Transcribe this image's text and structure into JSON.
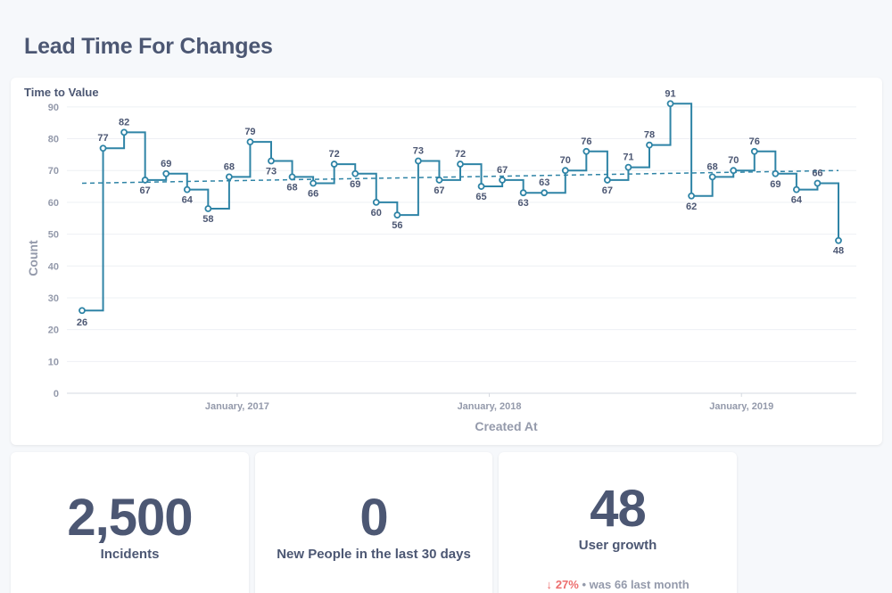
{
  "page": {
    "title": "Lead Time For Changes"
  },
  "chart_card": {
    "title": "Time to Value"
  },
  "chart_data": {
    "type": "line",
    "line_style": "step",
    "trend_line": true,
    "title": "Time to Value",
    "xlabel": "Created At",
    "ylabel": "Count",
    "ylim": [
      0,
      95
    ],
    "yticks": [
      0,
      10,
      20,
      30,
      40,
      50,
      60,
      70,
      80,
      90
    ],
    "xtick_labels": [
      "January, 2017",
      "January, 2018",
      "January, 2019"
    ],
    "xtick_index": [
      7,
      19,
      31
    ],
    "series": [
      {
        "values": [
          26,
          77,
          82,
          67,
          69,
          64,
          58,
          68,
          79,
          73,
          68,
          66,
          72,
          69,
          60,
          56,
          73,
          67,
          72,
          65,
          67,
          63,
          63,
          70,
          76,
          67,
          71,
          78,
          91,
          62,
          68,
          70,
          76,
          69,
          64,
          66,
          48
        ]
      }
    ],
    "trend": {
      "start": 66,
      "end": 70
    },
    "colors": {
      "line": "#2f84a6",
      "grid": "#eef0f4",
      "axis": "#d5d9e0",
      "text": "#949aab",
      "label": "#4c5773"
    },
    "grid": true
  },
  "scalars": [
    {
      "value": "2,500",
      "label": "Incidents"
    },
    {
      "value": "0",
      "label": "New People in the last 30 days"
    },
    {
      "value": "48",
      "label": "User growth",
      "comparison": {
        "arrow": "↓",
        "percent": "27%",
        "separator": "•",
        "previous_text": "was 66",
        "period": "last month"
      }
    }
  ],
  "colors": {
    "text": "#4c5773",
    "down": "#ed6e6e",
    "muted": "#949aab"
  }
}
